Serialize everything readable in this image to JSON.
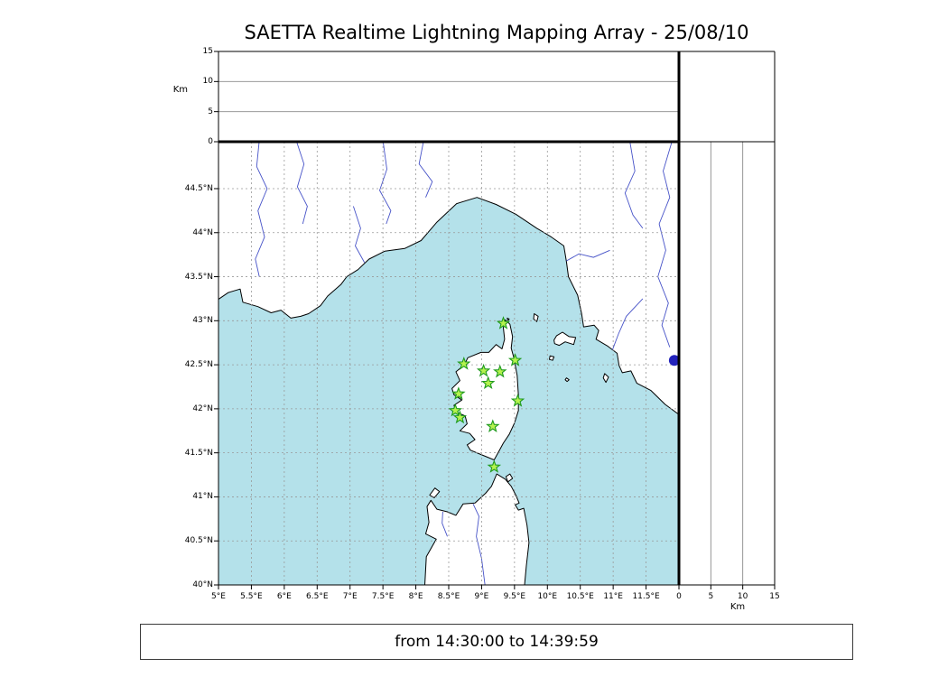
{
  "title": "SAETTA Realtime Lightning Mapping Array - 25/08/10",
  "footer": {
    "time_range": "from 14:30:00 to 14:39:59"
  },
  "colors": {
    "sea": "#b4e1ea",
    "land": "#ffffff",
    "coast": "#000000",
    "river": "#4753c8",
    "grid": "#999999",
    "panel_line": "#8a8a8a",
    "station_fill": "#b5f24e",
    "station_stroke": "#1e9a1e",
    "event_dot": "#2222bb",
    "frame": "#000000"
  },
  "altitude_axis": {
    "label": "Km",
    "tick_labels": [
      "0",
      "5",
      "10",
      "15"
    ],
    "tick_values": [
      0,
      5,
      10,
      15
    ],
    "range_km": [
      0,
      15
    ],
    "inner_lines_km": [
      5,
      10
    ]
  },
  "distance_axis": {
    "label": "Km",
    "tick_labels": [
      "0",
      "5",
      "10",
      "15"
    ],
    "tick_values": [
      0,
      5,
      10,
      15
    ],
    "range_km": [
      0,
      15
    ],
    "inner_lines_km": [
      5,
      10
    ]
  },
  "map_axes": {
    "lon_tick_labels": [
      "5°E",
      "5.5°E",
      "6°E",
      "6.5°E",
      "7°E",
      "7.5°E",
      "8°E",
      "8.5°E",
      "9°E",
      "9.5°E",
      "10°E",
      "10.5°E",
      "11°E",
      "11.5°E"
    ],
    "lon_tick_values": [
      5,
      5.5,
      6,
      6.5,
      7,
      7.5,
      8,
      8.5,
      9,
      9.5,
      10,
      10.5,
      11,
      11.5
    ],
    "lat_tick_labels": [
      "40°N",
      "40.5°N",
      "41°N",
      "41.5°N",
      "42°N",
      "42.5°N",
      "43°N",
      "43.5°N",
      "44°N",
      "44.5°N"
    ],
    "lat_tick_values": [
      40,
      40.5,
      41,
      41.5,
      42,
      42.5,
      43,
      43.5,
      44,
      44.5
    ],
    "lon_range": [
      5,
      12
    ],
    "lat_range": [
      40,
      45.03
    ],
    "grid_step_deg": 0.5
  },
  "chart_data": {
    "type": "scatter",
    "title": "SAETTA Realtime Lightning Mapping Array - 25/08/10",
    "time_window": "from 14:30:00 to 14:39:59",
    "lon_range_deg_e": [
      5,
      12
    ],
    "lat_range_deg_n": [
      40,
      45.03
    ],
    "stations_lon_lat": [
      [
        9.33,
        42.97
      ],
      [
        9.51,
        42.55
      ],
      [
        8.73,
        42.51
      ],
      [
        9.03,
        42.43
      ],
      [
        9.28,
        42.42
      ],
      [
        9.1,
        42.29
      ],
      [
        8.65,
        42.17
      ],
      [
        9.55,
        42.09
      ],
      [
        8.6,
        41.98
      ],
      [
        8.67,
        41.9
      ],
      [
        9.17,
        41.8
      ],
      [
        9.19,
        41.34
      ]
    ],
    "event_points_lon_lat": [
      [
        11.93,
        42.55
      ]
    ],
    "altitude_panel_points": []
  }
}
